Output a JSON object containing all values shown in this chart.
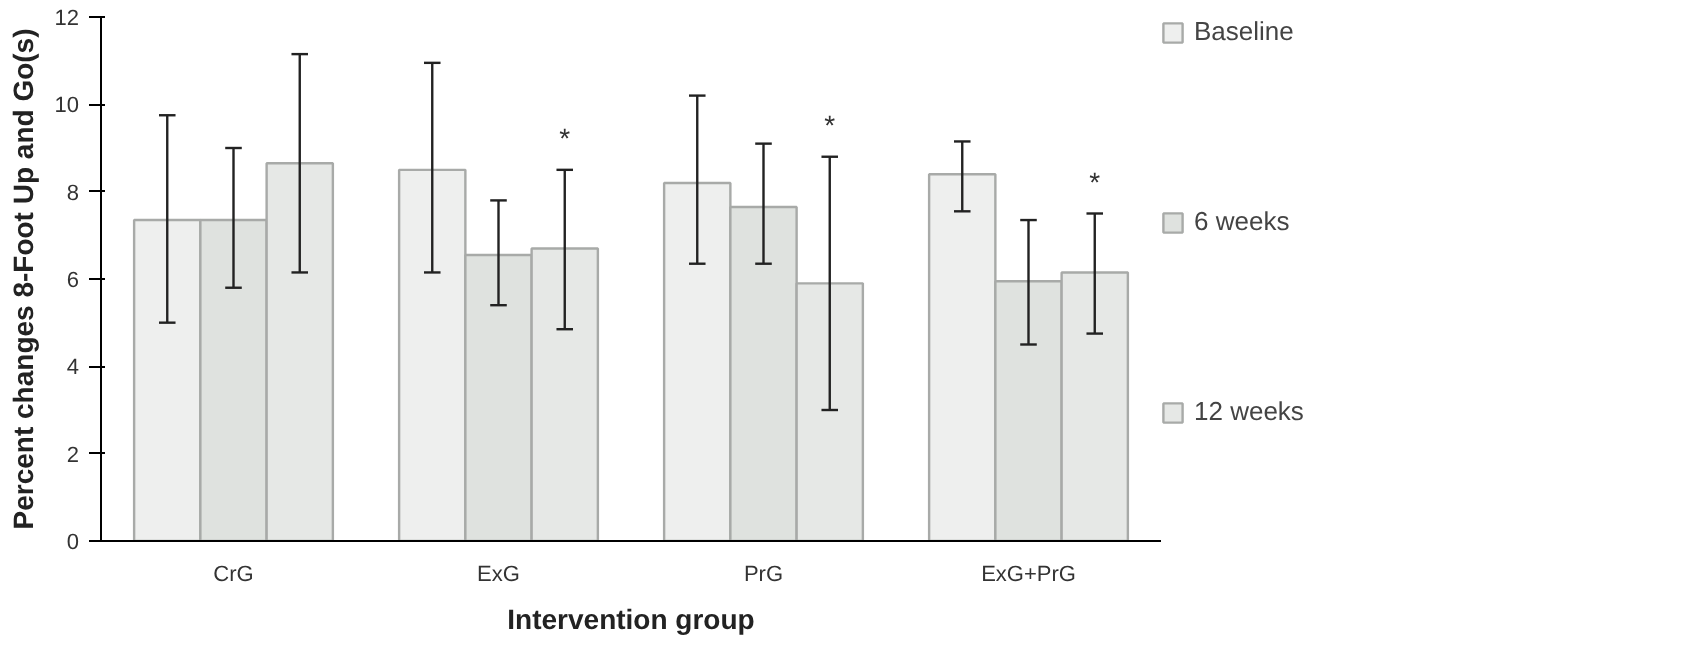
{
  "chart_data": {
    "type": "bar",
    "xlabel": "Intervention group",
    "ylabel": "Percent changes 8-Foot Up and Go(s)",
    "categories": [
      "CrG",
      "ExG",
      "PrG",
      "ExG+PrG"
    ],
    "series": [
      {
        "name": "Baseline",
        "color": "#eeefee",
        "values": [
          7.35,
          8.5,
          8.2,
          8.4
        ],
        "errors": [
          [
            5.0,
            9.75
          ],
          [
            6.15,
            10.95
          ],
          [
            6.35,
            10.2
          ],
          [
            7.55,
            9.15
          ]
        ]
      },
      {
        "name": "6 weeks",
        "color": "#dfe2df",
        "values": [
          7.35,
          6.55,
          7.65,
          5.95
        ],
        "errors": [
          [
            5.8,
            9.0
          ],
          [
            5.4,
            7.8
          ],
          [
            6.35,
            9.1
          ],
          [
            4.5,
            7.35
          ]
        ]
      },
      {
        "name": "12 weeks",
        "color": "#e6e8e6",
        "values": [
          8.65,
          6.7,
          5.9,
          6.15
        ],
        "errors": [
          [
            6.15,
            11.15
          ],
          [
            4.85,
            8.5
          ],
          [
            3.0,
            8.8
          ],
          [
            4.75,
            7.5
          ]
        ]
      }
    ],
    "annotations": [
      "*",
      "*",
      "*"
    ],
    "ylim": [
      0,
      12
    ],
    "yticks": [
      0,
      2,
      4,
      6,
      8,
      10,
      12
    ],
    "grid": false,
    "legend": "right"
  }
}
